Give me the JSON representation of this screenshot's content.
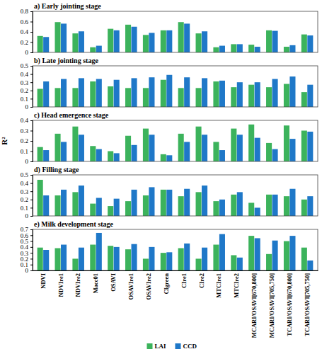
{
  "chart_data": [
    {
      "type": "bar",
      "title": "a) Early jointing stage",
      "categories": [
        "NDVI",
        "NDVIre1",
        "NDVIre2",
        "Macc01",
        "OSAVI",
        "OSAVIre1",
        "OSAVIre2",
        "CIgreen",
        "CIre1",
        "CIre2",
        "MTCIre1",
        "MTCIre2",
        "MCARI/OSAVI[670,800]",
        "MCARI/OSAVI[705,750]",
        "TCARI/OSAVI[670,800]",
        "TCARI/OSAVI[705,750]"
      ],
      "series": [
        {
          "name": "LAI",
          "color": "#3cb35c",
          "values": [
            0.32,
            0.59,
            0.37,
            0.1,
            0.46,
            0.54,
            0.34,
            0.43,
            0.59,
            0.37,
            0.1,
            0.16,
            0.15,
            0.43,
            0.11,
            0.35
          ]
        },
        {
          "name": "CCD",
          "color": "#1f78c8",
          "values": [
            0.3,
            0.56,
            0.41,
            0.13,
            0.43,
            0.5,
            0.38,
            0.43,
            0.56,
            0.41,
            0.13,
            0.16,
            0.11,
            0.42,
            0.14,
            0.33
          ]
        }
      ],
      "ylim": [
        0,
        0.8
      ],
      "yticks": [
        0,
        0.2,
        0.4,
        0.6,
        0.8
      ],
      "tick_labels": "y"
    },
    {
      "type": "bar",
      "title": "b) Late jointing stage",
      "categories": [
        "NDVI",
        "NDVIre1",
        "NDVIre2",
        "Macc01",
        "OSAVI",
        "OSAVIre1",
        "OSAVIre2",
        "CIgreen",
        "CIre1",
        "CIre2",
        "MTCIre1",
        "MTCIre2",
        "MCARI/OSAVI[670,800]",
        "MCARI/OSAVI[705,750]",
        "TCARI/OSAVI[670,800]",
        "TCARI/OSAVI[705,750]"
      ],
      "series": [
        {
          "name": "LAI",
          "color": "#3cb35c",
          "values": [
            0.22,
            0.23,
            0.23,
            0.31,
            0.25,
            0.23,
            0.23,
            0.33,
            0.23,
            0.23,
            0.31,
            0.24,
            0.27,
            0.24,
            0.28,
            0.18
          ]
        },
        {
          "name": "CCD",
          "color": "#1f78c8",
          "values": [
            0.31,
            0.34,
            0.35,
            0.34,
            0.33,
            0.35,
            0.36,
            0.39,
            0.36,
            0.35,
            0.32,
            0.3,
            0.3,
            0.34,
            0.37,
            0.27
          ]
        }
      ],
      "ylim": [
        0,
        0.5
      ],
      "yticks": [
        0,
        0.1,
        0.2,
        0.3,
        0.4,
        0.5
      ],
      "tick_labels": "y"
    },
    {
      "type": "bar",
      "title": "c) Head emergence stage",
      "y_label": "R²",
      "categories": [
        "NDVI",
        "NDVIre1",
        "NDVIre2",
        "Macc01",
        "OSAVI",
        "OSAVIre1",
        "OSAVIre2",
        "CIgreen",
        "CIre1",
        "CIre2",
        "MTCIre1",
        "MTCIre2",
        "MCARI/OSAVI[670,800]",
        "MCARI/OSAVI[705,750]",
        "TCARI/OSAVI[670,800]",
        "TCARI/OSAVI[705,750]"
      ],
      "series": [
        {
          "name": "LAI",
          "color": "#3cb35c",
          "values": [
            0.14,
            0.27,
            0.34,
            0.15,
            0.1,
            0.25,
            0.32,
            0.07,
            0.27,
            0.34,
            0.19,
            0.32,
            0.36,
            0.18,
            0.35,
            0.3
          ]
        },
        {
          "name": "CCD",
          "color": "#1f78c8",
          "values": [
            0.11,
            0.19,
            0.26,
            0.12,
            0.08,
            0.16,
            0.26,
            0.06,
            0.19,
            0.26,
            0.11,
            0.26,
            0.23,
            0.12,
            0.22,
            0.29
          ]
        }
      ],
      "ylim": [
        0,
        0.4
      ],
      "yticks": [
        0,
        0.1,
        0.2,
        0.3,
        0.4
      ],
      "tick_labels": "y"
    },
    {
      "type": "bar",
      "title": "d) Filling stage",
      "categories": [
        "NDVI",
        "NDVIre1",
        "NDVIre2",
        "Macc01",
        "OSAVI",
        "OSAVIre1",
        "OSAVIre2",
        "CIgreen",
        "CIre1",
        "CIre2",
        "MTCIre1",
        "MTCIre2",
        "MCARI/OSAVI[670,800]",
        "MCARI/OSAVI[705,750]",
        "TCARI/OSAVI[670,800]",
        "TCARI/OSAVI[705,750]"
      ],
      "series": [
        {
          "name": "LAI",
          "color": "#3cb35c",
          "values": [
            0.44,
            0.25,
            0.29,
            0.15,
            0.12,
            0.18,
            0.25,
            0.32,
            0.24,
            0.29,
            0.18,
            0.26,
            0.16,
            0.26,
            0.24,
            0.2
          ]
        },
        {
          "name": "CCD",
          "color": "#1f78c8",
          "values": [
            0.25,
            0.32,
            0.37,
            0.22,
            0.21,
            0.32,
            0.35,
            0.32,
            0.33,
            0.37,
            0.2,
            0.29,
            0.1,
            0.26,
            0.33,
            0.24
          ]
        }
      ],
      "ylim": [
        0,
        0.5
      ],
      "yticks": [
        0,
        0.1,
        0.2,
        0.3,
        0.4,
        0.5
      ],
      "tick_labels": "y"
    },
    {
      "type": "bar",
      "title": "e) Milk development stage",
      "categories": [
        "NDVI",
        "NDVIre1",
        "NDVIre2",
        "Macc01",
        "OSAVI",
        "OSAVIre1",
        "OSAVIre2",
        "CIgreen",
        "CIre1",
        "CIre2",
        "MTCIre1",
        "MTCIre2",
        "MCARI/OSAVI[670,800]",
        "MCARI/OSAVI[705,750]",
        "TCARI/OSAVI[670,800]",
        "TCARI/OSAVI[705,750]"
      ],
      "series": [
        {
          "name": "LAI",
          "color": "#3cb35c",
          "values": [
            0.39,
            0.38,
            0.2,
            0.44,
            0.42,
            0.36,
            0.2,
            0.3,
            0.38,
            0.2,
            0.44,
            0.26,
            0.59,
            0.28,
            0.5,
            0.39
          ]
        },
        {
          "name": "CCD",
          "color": "#1f78c8",
          "values": [
            0.35,
            0.44,
            0.39,
            0.64,
            0.4,
            0.45,
            0.4,
            0.31,
            0.46,
            0.39,
            0.62,
            0.22,
            0.55,
            0.51,
            0.59,
            0.17
          ]
        }
      ],
      "ylim": [
        0,
        0.7
      ],
      "yticks": [
        0,
        0.1,
        0.2,
        0.3,
        0.4,
        0.5,
        0.6,
        0.7
      ],
      "legend": "bottom"
    }
  ]
}
